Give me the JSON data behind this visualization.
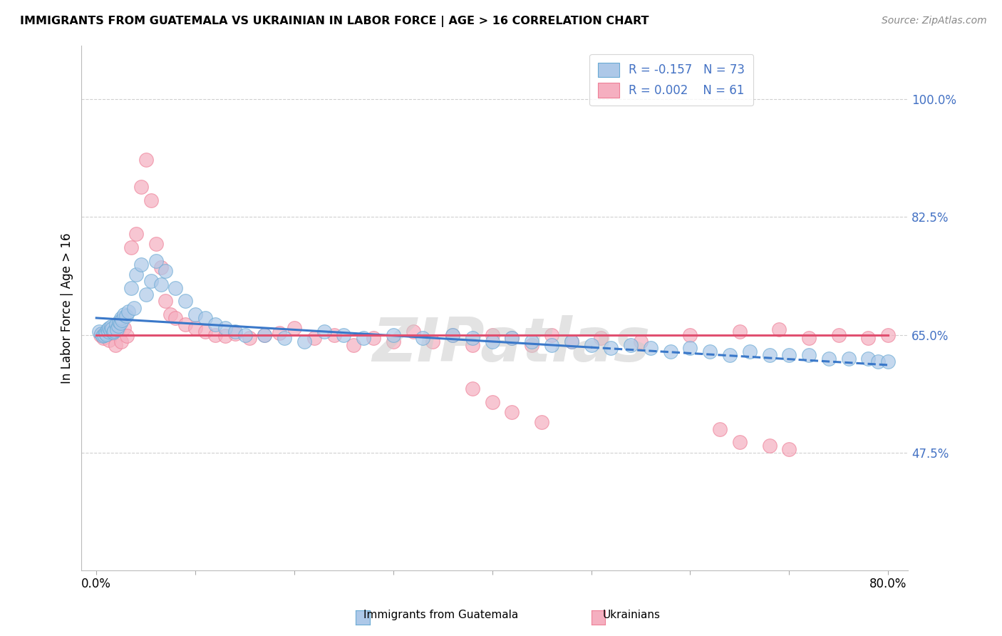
{
  "title": "IMMIGRANTS FROM GUATEMALA VS UKRAINIAN IN LABOR FORCE | AGE > 16 CORRELATION CHART",
  "source": "Source: ZipAtlas.com",
  "ylabel": "In Labor Force | Age > 16",
  "ytick_vals": [
    47.5,
    65.0,
    82.5,
    100.0
  ],
  "xlim": [
    -1.5,
    82
  ],
  "ylim": [
    30,
    108
  ],
  "legend_r_guatemala": "-0.157",
  "legend_n_guatemala": "73",
  "legend_r_ukraine": "0.002",
  "legend_n_ukraine": "61",
  "color_guatemala_fill": "#adc8e8",
  "color_guatemala_edge": "#6aaad4",
  "color_ukraine_fill": "#f5afc0",
  "color_ukraine_edge": "#ee8098",
  "color_blue_text": "#4472c4",
  "color_trendline_guatemala": "#3a78c9",
  "color_trendline_ukraine": "#e05070",
  "color_grid": "#d0d0d0",
  "watermark": "ZIPatlas",
  "guat_x": [
    0.3,
    0.5,
    0.6,
    0.8,
    0.9,
    1.0,
    1.1,
    1.2,
    1.3,
    1.4,
    1.5,
    1.6,
    1.7,
    1.8,
    2.0,
    2.1,
    2.2,
    2.3,
    2.4,
    2.5,
    2.6,
    2.8,
    3.0,
    3.2,
    3.5,
    3.8,
    4.0,
    4.5,
    5.0,
    5.5,
    6.0,
    6.5,
    7.0,
    8.0,
    9.0,
    10.0,
    11.0,
    12.0,
    13.0,
    14.0,
    15.0,
    17.0,
    19.0,
    21.0,
    23.0,
    25.0,
    27.0,
    30.0,
    33.0,
    36.0,
    38.0,
    40.0,
    42.0,
    44.0,
    46.0,
    48.0,
    50.0,
    52.0,
    54.0,
    56.0,
    58.0,
    60.0,
    62.0,
    64.0,
    66.0,
    68.0,
    70.0,
    72.0,
    74.0,
    76.0,
    78.0,
    79.0,
    80.0
  ],
  "guat_y": [
    65.5,
    65.2,
    64.8,
    65.0,
    65.3,
    65.1,
    65.8,
    65.5,
    66.0,
    65.7,
    66.2,
    65.9,
    65.4,
    65.6,
    66.5,
    65.8,
    66.3,
    67.0,
    66.8,
    67.5,
    67.2,
    68.0,
    67.8,
    68.5,
    72.0,
    69.0,
    74.0,
    75.5,
    71.0,
    73.0,
    76.0,
    72.5,
    74.5,
    72.0,
    70.0,
    68.0,
    67.5,
    66.5,
    66.0,
    65.5,
    65.0,
    65.0,
    64.5,
    64.0,
    65.5,
    65.0,
    64.5,
    65.0,
    64.5,
    65.0,
    64.5,
    64.0,
    64.5,
    64.0,
    63.5,
    64.0,
    63.5,
    63.0,
    63.5,
    63.0,
    62.5,
    63.0,
    62.5,
    62.0,
    62.5,
    62.0,
    62.0,
    62.0,
    61.5,
    61.5,
    61.5,
    61.0,
    61.0
  ],
  "ukr_x": [
    0.4,
    0.7,
    1.0,
    1.3,
    1.6,
    1.9,
    2.2,
    2.5,
    2.8,
    3.1,
    3.5,
    4.0,
    4.5,
    5.0,
    5.5,
    6.0,
    6.5,
    7.0,
    7.5,
    8.0,
    9.0,
    10.0,
    11.0,
    12.0,
    13.0,
    14.0,
    15.5,
    17.0,
    18.5,
    20.0,
    22.0,
    24.0,
    26.0,
    28.0,
    30.0,
    32.0,
    34.0,
    36.0,
    38.0,
    40.0,
    42.0,
    44.0,
    46.0,
    48.0,
    51.0,
    55.0,
    60.0,
    65.0,
    69.0,
    72.0,
    75.0,
    78.0,
    80.0,
    38.0,
    40.0,
    42.0,
    45.0,
    63.0,
    65.0,
    68.0,
    70.0
  ],
  "ukr_y": [
    65.0,
    64.5,
    65.5,
    64.2,
    65.3,
    63.5,
    65.8,
    64.0,
    66.0,
    64.8,
    78.0,
    80.0,
    87.0,
    91.0,
    85.0,
    78.5,
    75.0,
    70.0,
    68.0,
    67.5,
    66.5,
    66.0,
    65.5,
    65.0,
    64.8,
    65.2,
    64.5,
    65.0,
    65.3,
    66.0,
    64.5,
    65.0,
    63.5,
    64.5,
    64.0,
    65.5,
    64.0,
    65.0,
    63.5,
    65.0,
    64.5,
    63.5,
    65.0,
    64.0,
    64.5,
    64.0,
    65.0,
    65.5,
    65.8,
    64.5,
    65.0,
    64.5,
    65.0,
    57.0,
    55.0,
    53.5,
    52.0,
    51.0,
    49.0,
    48.5,
    48.0
  ],
  "trendline_guat_x0": 0.0,
  "trendline_guat_y0": 67.5,
  "trendline_guat_x1": 80.0,
  "trendline_guat_y1": 60.5,
  "trendline_guat_solid_end": 50.0,
  "trendline_ukr_y": 65.0
}
